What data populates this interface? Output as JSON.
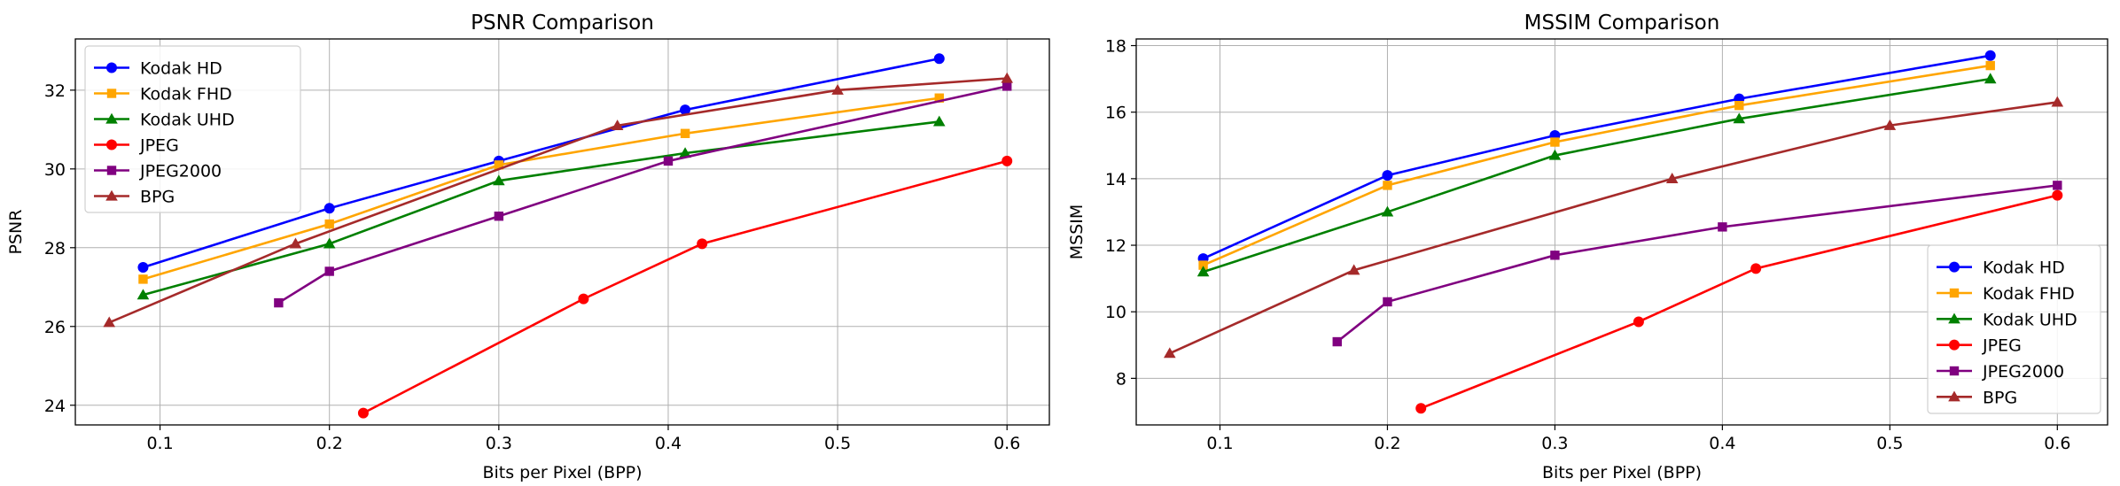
{
  "chart_data": [
    {
      "type": "line",
      "title": "PSNR Comparison",
      "xlabel": "Bits per Pixel (BPP)",
      "ylabel": "PSNR",
      "xlim": [
        0.05,
        0.625
      ],
      "ylim": [
        23.5,
        33.3
      ],
      "xticks": [
        0.1,
        0.2,
        0.3,
        0.4,
        0.5,
        0.6
      ],
      "yticks": [
        24,
        26,
        28,
        30,
        32
      ],
      "grid": true,
      "legend": "top-left",
      "series": [
        {
          "name": "Kodak HD",
          "color": "#0000ff",
          "marker": "circle",
          "x": [
            0.09,
            0.2,
            0.3,
            0.41,
            0.56
          ],
          "y": [
            27.5,
            29.0,
            30.2,
            31.5,
            32.8
          ]
        },
        {
          "name": "Kodak FHD",
          "color": "#ffa500",
          "marker": "square",
          "x": [
            0.09,
            0.2,
            0.3,
            0.41,
            0.56
          ],
          "y": [
            27.2,
            28.6,
            30.1,
            30.9,
            31.8
          ]
        },
        {
          "name": "Kodak UHD",
          "color": "#008000",
          "marker": "triangle",
          "x": [
            0.09,
            0.2,
            0.3,
            0.41,
            0.56
          ],
          "y": [
            26.8,
            28.1,
            29.7,
            30.4,
            31.2
          ]
        },
        {
          "name": "JPEG",
          "color": "#ff0000",
          "marker": "circle",
          "x": [
            0.22,
            0.35,
            0.42,
            0.6
          ],
          "y": [
            23.8,
            26.7,
            28.1,
            30.2
          ]
        },
        {
          "name": "JPEG2000",
          "color": "#800080",
          "marker": "square",
          "x": [
            0.17,
            0.2,
            0.3,
            0.4,
            0.6
          ],
          "y": [
            26.6,
            27.4,
            28.8,
            30.2,
            32.1
          ]
        },
        {
          "name": "BPG",
          "color": "#a52a2a",
          "marker": "triangle",
          "x": [
            0.07,
            0.18,
            0.37,
            0.5,
            0.6
          ],
          "y": [
            26.1,
            28.1,
            31.1,
            32.0,
            32.3
          ]
        }
      ]
    },
    {
      "type": "line",
      "title": "MSSIM Comparison",
      "xlabel": "Bits per Pixel (BPP)",
      "ylabel": "MSSIM",
      "xlim": [
        0.05,
        0.63
      ],
      "ylim": [
        6.6,
        18.2
      ],
      "xticks": [
        0.1,
        0.2,
        0.3,
        0.4,
        0.5,
        0.6
      ],
      "yticks": [
        8,
        10,
        12,
        14,
        16,
        18
      ],
      "grid": true,
      "legend": "bottom-right",
      "series": [
        {
          "name": "Kodak HD",
          "color": "#0000ff",
          "marker": "circle",
          "x": [
            0.09,
            0.2,
            0.3,
            0.41,
            0.56
          ],
          "y": [
            11.6,
            14.1,
            15.3,
            16.4,
            17.7
          ]
        },
        {
          "name": "Kodak FHD",
          "color": "#ffa500",
          "marker": "square",
          "x": [
            0.09,
            0.2,
            0.3,
            0.41,
            0.56
          ],
          "y": [
            11.4,
            13.8,
            15.1,
            16.2,
            17.4
          ]
        },
        {
          "name": "Kodak UHD",
          "color": "#008000",
          "marker": "triangle",
          "x": [
            0.09,
            0.2,
            0.3,
            0.41,
            0.56
          ],
          "y": [
            11.2,
            13.0,
            14.7,
            15.8,
            17.0
          ]
        },
        {
          "name": "JPEG",
          "color": "#ff0000",
          "marker": "circle",
          "x": [
            0.22,
            0.35,
            0.42,
            0.6
          ],
          "y": [
            7.1,
            9.7,
            11.3,
            13.5
          ]
        },
        {
          "name": "JPEG2000",
          "color": "#800080",
          "marker": "square",
          "x": [
            0.17,
            0.2,
            0.3,
            0.4,
            0.6
          ],
          "y": [
            9.1,
            10.3,
            11.7,
            12.55,
            13.8
          ]
        },
        {
          "name": "BPG",
          "color": "#a52a2a",
          "marker": "triangle",
          "x": [
            0.07,
            0.18,
            0.37,
            0.5,
            0.6
          ],
          "y": [
            8.75,
            11.25,
            14.0,
            15.6,
            16.3
          ]
        }
      ]
    }
  ]
}
